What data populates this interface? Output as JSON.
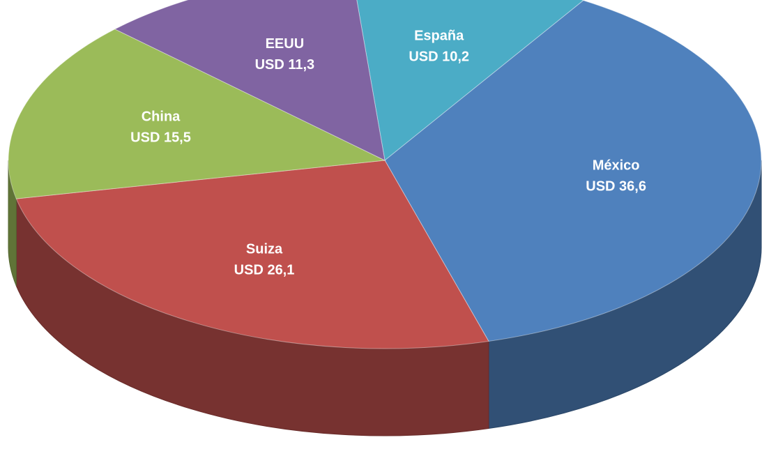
{
  "chart_data": {
    "type": "pie",
    "categories": [
      "España",
      "México",
      "Suiza",
      "China",
      "EEUU"
    ],
    "values": [
      10.2,
      36.6,
      26.1,
      15.5,
      11.3
    ],
    "value_labels": [
      "USD 10,2",
      "USD 36,6",
      "USD 26,1",
      "USD 15,5",
      "USD 11,3"
    ],
    "colors": [
      "#4bacc6",
      "#4f81bd",
      "#c0504d",
      "#9bbb59",
      "#8064a2"
    ]
  }
}
